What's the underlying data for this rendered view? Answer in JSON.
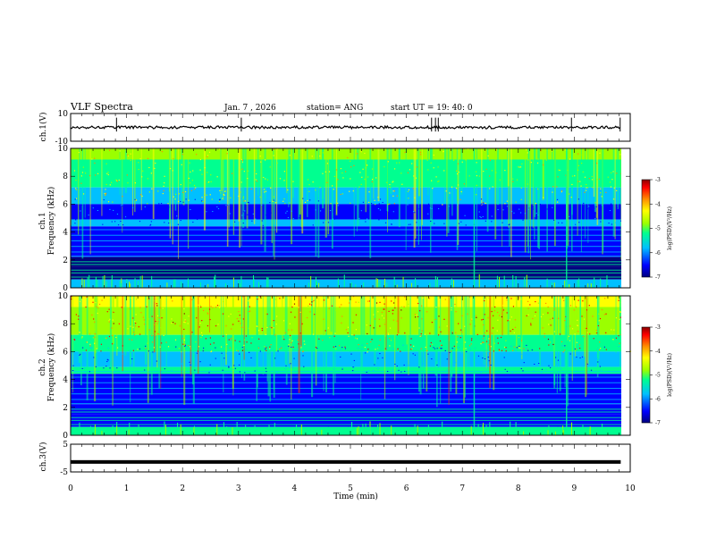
{
  "header": {
    "title": "VLF Spectra",
    "date": "Jan. 7 , 2026",
    "station": "station= ANG",
    "start": "start  UT =  19: 40: 0"
  },
  "colors": {
    "trace": "#000000",
    "colormap": [
      "#00007f",
      "#0000ff",
      "#00c0ff",
      "#00ff90",
      "#9bff00",
      "#ffff00",
      "#ff8c00",
      "#ff0000",
      "#8b0000"
    ]
  },
  "chart_data": [
    {
      "type": "line",
      "name": "ch1-waveform",
      "ylabel": "ch.1(V)",
      "ylim": [
        -10,
        10
      ],
      "yticks": [
        "10",
        "-10"
      ],
      "xlim": [
        0,
        10
      ],
      "baseline": 0,
      "spikes": [
        0.82,
        3.05,
        6.45,
        6.52,
        6.57,
        8.95,
        9.82
      ]
    },
    {
      "type": "heatmap",
      "name": "ch1-spectrogram",
      "ylabel": "ch.1\nFrequency  (kHz)",
      "ylim": [
        0,
        10
      ],
      "yticks": [
        "0",
        "2",
        "4",
        "6",
        "8",
        "10"
      ],
      "xlim": [
        0,
        10
      ],
      "colorbar": {
        "label": "log(PSD)(V²/Hz)",
        "range": [
          -7,
          -3
        ],
        "ticks": [
          "-3",
          "-4",
          "-5",
          "-6",
          "-7"
        ]
      }
    },
    {
      "type": "heatmap",
      "name": "ch2-spectrogram",
      "ylabel": "ch.2\nFrequency  (kHz)",
      "ylim": [
        0,
        10
      ],
      "yticks": [
        "0",
        "2",
        "4",
        "6",
        "8",
        "10"
      ],
      "xlim": [
        0,
        10
      ],
      "colorbar": {
        "label": "log(PSD)(V²/Hz)",
        "range": [
          -7,
          -3
        ],
        "ticks": [
          "-3",
          "-4",
          "-5",
          "-6",
          "-7"
        ]
      }
    },
    {
      "type": "line",
      "name": "ch3-waveform",
      "ylabel": "ch.3(V)",
      "ylim": [
        -5,
        5
      ],
      "yticks": [
        "5",
        "-5"
      ],
      "xlim": [
        0,
        10
      ],
      "baseline": -1.4
    }
  ],
  "xaxis": {
    "label": "Time  (min)",
    "ticks": [
      "0",
      "1",
      "2",
      "3",
      "4",
      "5",
      "6",
      "7",
      "8",
      "9",
      "10"
    ]
  }
}
